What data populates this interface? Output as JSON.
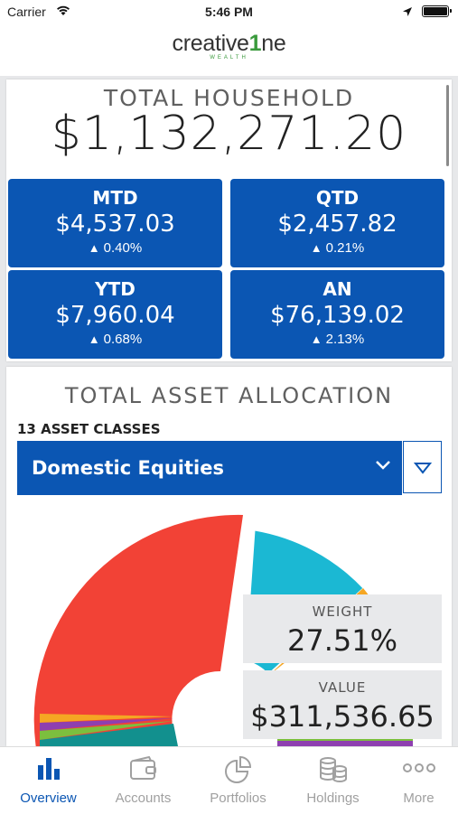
{
  "status_bar": {
    "carrier": "Carrier",
    "time": "5:46 PM"
  },
  "brand": {
    "name_prefix": "creative",
    "name_number": "1",
    "name_suffix": "ne",
    "tagline": "WEALTH"
  },
  "household": {
    "title": "TOTAL HOUSEHOLD",
    "total": "$1,132,271.20",
    "tiles": [
      {
        "label": "MTD",
        "value": "$4,537.03",
        "change": "0.40%"
      },
      {
        "label": "QTD",
        "value": "$2,457.82",
        "change": "0.21%"
      },
      {
        "label": "YTD",
        "value": "$7,960.04",
        "change": "0.68%"
      },
      {
        "label": "AN",
        "value": "$76,139.02",
        "change": "2.13%"
      }
    ]
  },
  "allocation": {
    "title": "TOTAL ASSET ALLOCATION",
    "classes_label": "13 ASSET CLASSES",
    "selected": "Domestic Equities",
    "weight_label": "WEIGHT",
    "weight_value": "27.51%",
    "value_label": "VALUE",
    "value_value": "$311,536.65",
    "colors": {
      "selected": "#f24236",
      "cyan": "#1bb8d3",
      "orange": "#f5a623",
      "purple": "#8e3fb0",
      "green": "#7cbf3e",
      "teal": "#12908e",
      "blue": "#0b56b3"
    }
  },
  "tabs": [
    {
      "label": "Overview",
      "icon": "bar-chart-icon",
      "active": true
    },
    {
      "label": "Accounts",
      "icon": "wallet-icon",
      "active": false
    },
    {
      "label": "Portfolios",
      "icon": "pie-chart-icon",
      "active": false
    },
    {
      "label": "Holdings",
      "icon": "coins-icon",
      "active": false
    },
    {
      "label": "More",
      "icon": "more-icon",
      "active": false
    }
  ],
  "theme": {
    "accent": "#0b56b3",
    "inactive": "#a0a0a0"
  }
}
